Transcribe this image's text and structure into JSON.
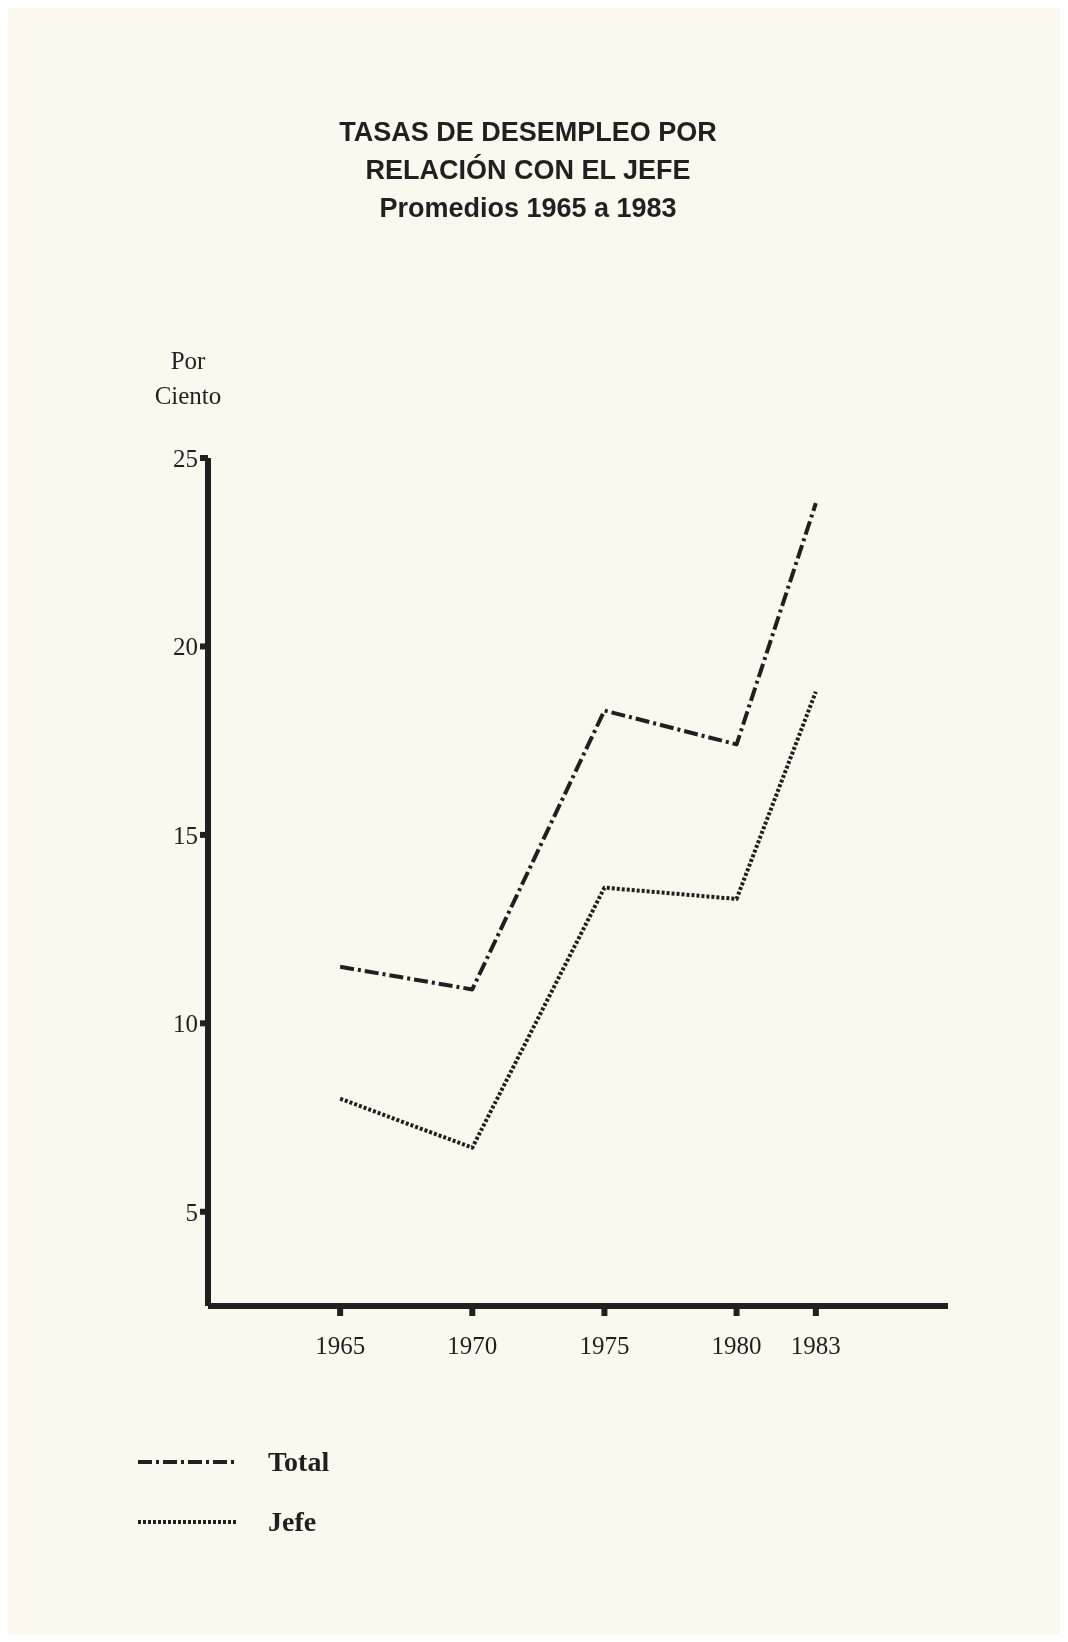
{
  "chart_data": {
    "type": "line",
    "title": "TASAS DE DESEMPLEO POR RELACIÓN CON EL JEFE",
    "subtitle": "Promedios 1965 a 1983",
    "ylabel": "Por Ciento",
    "x": [
      1965,
      1970,
      1975,
      1980,
      1983
    ],
    "xlim": [
      1960,
      1988
    ],
    "xticks": [
      1965,
      1970,
      1975,
      1980,
      1983
    ],
    "ylim": [
      2.5,
      25
    ],
    "yticks": [
      5,
      10,
      15,
      20,
      25
    ],
    "series": [
      {
        "name": "Total",
        "color": "#231f20",
        "line_style": "dashed",
        "values": [
          11.5,
          10.9,
          18.3,
          17.4,
          23.8
        ]
      },
      {
        "name": "Jefe",
        "color": "#231f20",
        "line_style": "dotted",
        "values": [
          8.0,
          6.7,
          13.6,
          13.3,
          18.8
        ]
      }
    ],
    "legend": "bottom left",
    "grid": false,
    "marker": "none"
  }
}
